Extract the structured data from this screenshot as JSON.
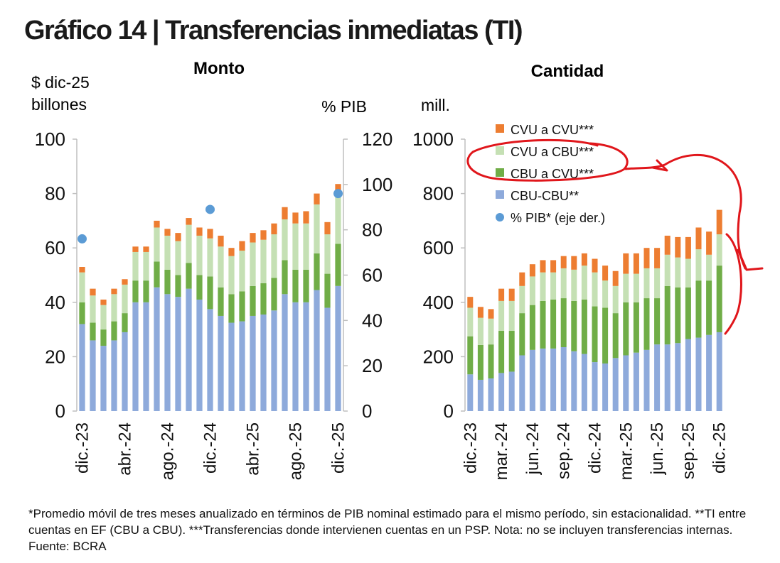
{
  "title": "Gráfico 14 | Transferencias inmediatas (TI)",
  "footnote": "*Promedio móvil de tres meses anualizado en términos de PIB nominal estimado para el mismo período, sin estacionalidad. **TI entre cuentas en EF (CBU a CBU). ***Transferencias donde intervienen cuentas en un PSP. Nota: no se incluyen transferencias internas. Fuente: BCRA",
  "colors": {
    "cbu_cbu": "#8eaadb",
    "cbu_cvu": "#70ad47",
    "cvu_cbu": "#c5e0b4",
    "cvu_cvu": "#ed7d31",
    "pib": "#5b9bd5",
    "annotation": "#e0161b"
  },
  "chart_data": [
    {
      "type": "bar",
      "stacked": true,
      "title": "Monto",
      "ylabel": "$ dic-25 billones",
      "y2label": "% PIB",
      "ylim": [
        0,
        100
      ],
      "y2lim": [
        0,
        120
      ],
      "yticks": [
        "0",
        "20",
        "40",
        "60",
        "80",
        "100"
      ],
      "y2ticks": [
        "0",
        "20",
        "40",
        "60",
        "80",
        "100",
        "120"
      ],
      "categories": [
        "dic.-23",
        "ene.-24",
        "feb.-24",
        "mar.-24",
        "abr.-24",
        "may.-24",
        "jun.-24",
        "jul.-24",
        "ago.-24",
        "sep.-24",
        "oct.-24",
        "nov.-24",
        "dic.-24",
        "ene.-25",
        "feb.-25",
        "mar.-25",
        "abr.-25",
        "may.-25",
        "jun.-25",
        "jul.-25",
        "ago.-25",
        "sep.-25",
        "oct.-25",
        "nov.-25",
        "dic.-25"
      ],
      "xtick_labels": [
        "dic.-23",
        "",
        "",
        "",
        "abr.-24",
        "",
        "",
        "",
        "ago.-24",
        "",
        "",
        "",
        "dic.-24",
        "",
        "",
        "",
        "abr.-25",
        "",
        "",
        "",
        "ago.-25",
        "",
        "",
        "",
        "dic.-25"
      ],
      "series": [
        {
          "name": "CBU-CBU**",
          "values": [
            32,
            26,
            24,
            26,
            29,
            40,
            40,
            45.5,
            43,
            42,
            45,
            41,
            37.5,
            35,
            32.5,
            33,
            35,
            35.5,
            37,
            43,
            40,
            40,
            44.5,
            38,
            46
          ]
        },
        {
          "name": "CBU a CVU***",
          "values": [
            8,
            6.5,
            6,
            7,
            7,
            8,
            8,
            9.5,
            9,
            8,
            9.5,
            9,
            12,
            10.5,
            10.5,
            11,
            11,
            11.5,
            12,
            12.5,
            12,
            12,
            13.5,
            12.5,
            15.5
          ]
        },
        {
          "name": "CVU a CBU***",
          "values": [
            11,
            10,
            9,
            10,
            10.5,
            10.5,
            10.5,
            12.5,
            12.5,
            12.5,
            14,
            14.5,
            14,
            15,
            14,
            15,
            16,
            16,
            16,
            15,
            17,
            17,
            18,
            14.5,
            19
          ]
        },
        {
          "name": "CVU a CVU***",
          "values": [
            2,
            2.5,
            2,
            2,
            2,
            2,
            2,
            2.5,
            2.5,
            3,
            2.5,
            3,
            3.5,
            4,
            3,
            3.5,
            3.5,
            3.5,
            4,
            4.5,
            4,
            4.5,
            4,
            4.5,
            3
          ]
        },
        {
          "name": "% PIB* (eje der.)",
          "axis": "right",
          "type": "scatter",
          "x": [
            "dic.-23",
            "dic.-24",
            "dic.-25"
          ],
          "values": [
            76,
            89,
            96
          ]
        }
      ]
    },
    {
      "type": "bar",
      "stacked": true,
      "title": "Cantidad",
      "ylabel": "mill.",
      "ylim": [
        0,
        1000
      ],
      "yticks": [
        "0",
        "200",
        "400",
        "600",
        "800",
        "1000"
      ],
      "categories": [
        "dic.-23",
        "ene.-24",
        "feb.-24",
        "mar.-24",
        "abr.-24",
        "may.-24",
        "jun.-24",
        "jul.-24",
        "ago.-24",
        "sep.-24",
        "oct.-24",
        "nov.-24",
        "dic.-24",
        "ene.-25",
        "feb.-25",
        "mar.-25",
        "abr.-25",
        "may.-25",
        "jun.-25",
        "jul.-25",
        "ago.-25",
        "sep.-25",
        "oct.-25",
        "nov.-25",
        "dic.-25"
      ],
      "xtick_labels": [
        "dic.-23",
        "",
        "",
        "mar.-24",
        "",
        "",
        "jun.-24",
        "",
        "",
        "sep.-24",
        "",
        "",
        "dic.-24",
        "",
        "",
        "mar.-25",
        "",
        "",
        "jun.-25",
        "",
        "",
        "sep.-25",
        "",
        "",
        "dic.-25"
      ],
      "series": [
        {
          "name": "CBU-CBU**",
          "values": [
            135,
            115,
            120,
            140,
            145,
            205,
            225,
            230,
            230,
            235,
            220,
            210,
            180,
            175,
            195,
            205,
            215,
            225,
            245,
            245,
            250,
            265,
            270,
            280,
            290
          ]
        },
        {
          "name": "CBU a CVU***",
          "values": [
            140,
            128,
            125,
            155,
            150,
            155,
            165,
            175,
            180,
            180,
            185,
            200,
            205,
            205,
            165,
            195,
            185,
            190,
            170,
            215,
            205,
            190,
            210,
            200,
            245
          ]
        },
        {
          "name": "CVU a CBU***",
          "values": [
            105,
            100,
            95,
            110,
            110,
            100,
            105,
            105,
            100,
            110,
            115,
            125,
            125,
            100,
            100,
            105,
            105,
            110,
            110,
            115,
            110,
            105,
            115,
            95,
            115
          ]
        },
        {
          "name": "CVU a CVU***",
          "values": [
            40,
            40,
            35,
            45,
            45,
            50,
            45,
            45,
            45,
            45,
            50,
            45,
            50,
            55,
            55,
            75,
            75,
            75,
            75,
            70,
            75,
            80,
            80,
            85,
            90
          ]
        }
      ],
      "legend": {
        "placement": "top-left",
        "items": [
          "CVU a CVU***",
          "CVU a CBU***",
          "CBU a CVU***",
          "CBU-CBU**",
          "% PIB* (eje der.)"
        ]
      }
    }
  ]
}
